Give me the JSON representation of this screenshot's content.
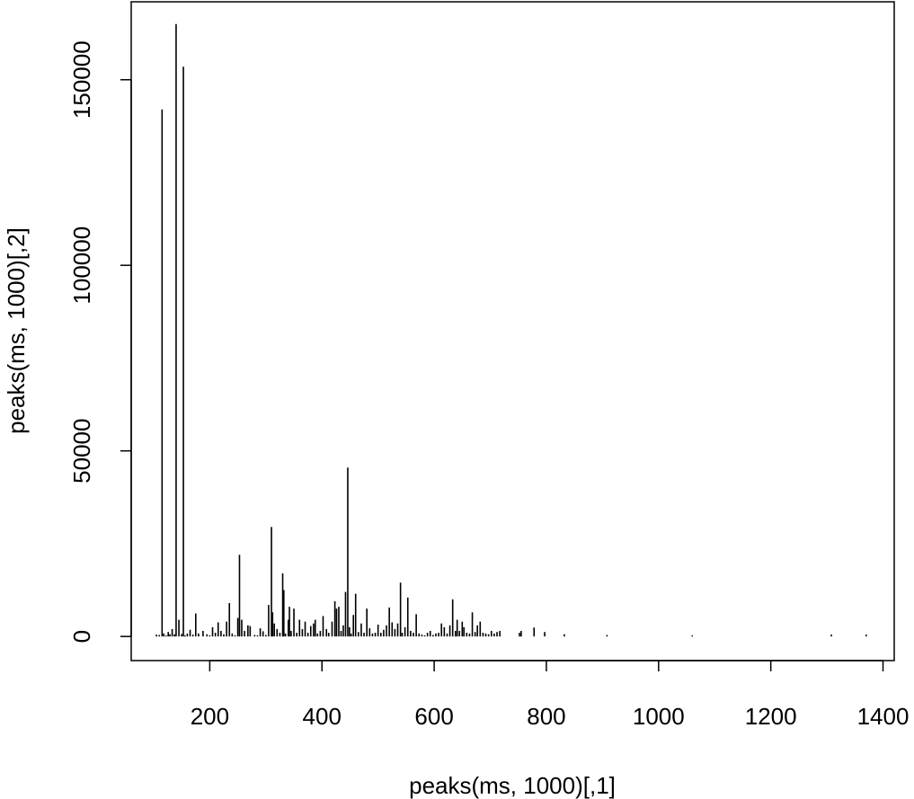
{
  "chart_data": {
    "type": "bar",
    "title": "",
    "xlabel": "peaks(ms, 1000)[,1]",
    "ylabel": "peaks(ms, 1000)[,2]",
    "xlim": [
      60,
      1420
    ],
    "ylim": [
      -6500,
      171000
    ],
    "x_ticks": [
      200,
      400,
      600,
      800,
      1000,
      1200,
      1400
    ],
    "y_ticks": [
      0,
      50000,
      100000,
      150000
    ],
    "grid": false,
    "x": [
      105,
      110,
      115,
      118,
      122,
      126,
      129,
      133,
      137,
      140,
      145,
      150,
      153,
      156,
      160,
      165,
      170,
      175,
      180,
      188,
      195,
      200,
      205,
      210,
      215,
      220,
      225,
      230,
      235,
      240,
      245,
      250,
      253,
      257,
      262,
      268,
      272,
      280,
      285,
      290,
      295,
      300,
      305,
      310,
      312,
      315,
      320,
      325,
      330,
      332,
      335,
      340,
      342,
      345,
      350,
      355,
      360,
      365,
      370,
      375,
      380,
      385,
      388,
      392,
      397,
      402,
      408,
      412,
      418,
      423,
      426,
      430,
      434,
      438,
      442,
      446,
      449,
      452,
      456,
      460,
      465,
      470,
      475,
      480,
      485,
      490,
      495,
      500,
      505,
      510,
      515,
      520,
      525,
      530,
      535,
      540,
      543,
      548,
      553,
      558,
      563,
      568,
      573,
      578,
      583,
      588,
      593,
      598,
      603,
      608,
      613,
      618,
      623,
      628,
      633,
      638,
      641,
      645,
      650,
      653,
      658,
      663,
      668,
      673,
      677,
      682,
      687,
      692,
      697,
      702,
      707,
      712,
      717,
      752,
      755,
      778,
      797,
      832,
      908,
      1060,
      1308,
      1370
    ],
    "values": [
      500,
      400,
      142000,
      800,
      300,
      1200,
      600,
      2000,
      600,
      165000,
      4500,
      700,
      153500,
      300,
      800,
      1800,
      500,
      6200,
      800,
      1500,
      600,
      300,
      2500,
      1000,
      3800,
      1500,
      600,
      4000,
      9000,
      800,
      300,
      5000,
      22000,
      4500,
      1500,
      3000,
      2800,
      400,
      300,
      2200,
      1400,
      400,
      8500,
      29500,
      6500,
      3500,
      2000,
      1000,
      17000,
      12500,
      800,
      4500,
      8000,
      1500,
      7500,
      1000,
      4500,
      2000,
      4000,
      1000,
      2800,
      3500,
      4500,
      800,
      1500,
      5500,
      2000,
      1000,
      4000,
      9500,
      7500,
      8000,
      1500,
      3000,
      12000,
      45500,
      2500,
      800,
      5800,
      11500,
      1200,
      3500,
      1000,
      7500,
      2200,
      800,
      1000,
      3200,
      1000,
      1800,
      3000,
      7800,
      3800,
      2000,
      3500,
      14500,
      1000,
      2500,
      10500,
      1500,
      1000,
      6000,
      800,
      500,
      300,
      1000,
      1500,
      400,
      800,
      1000,
      3500,
      2500,
      800,
      3000,
      10000,
      1500,
      4500,
      1500,
      4000,
      2500,
      1000,
      800,
      6500,
      1200,
      3000,
      4000,
      1000,
      800,
      600,
      1500,
      800,
      1200,
      1500,
      1000,
      1500,
      2400,
      1200,
      600,
      400,
      300,
      500,
      500
    ]
  }
}
